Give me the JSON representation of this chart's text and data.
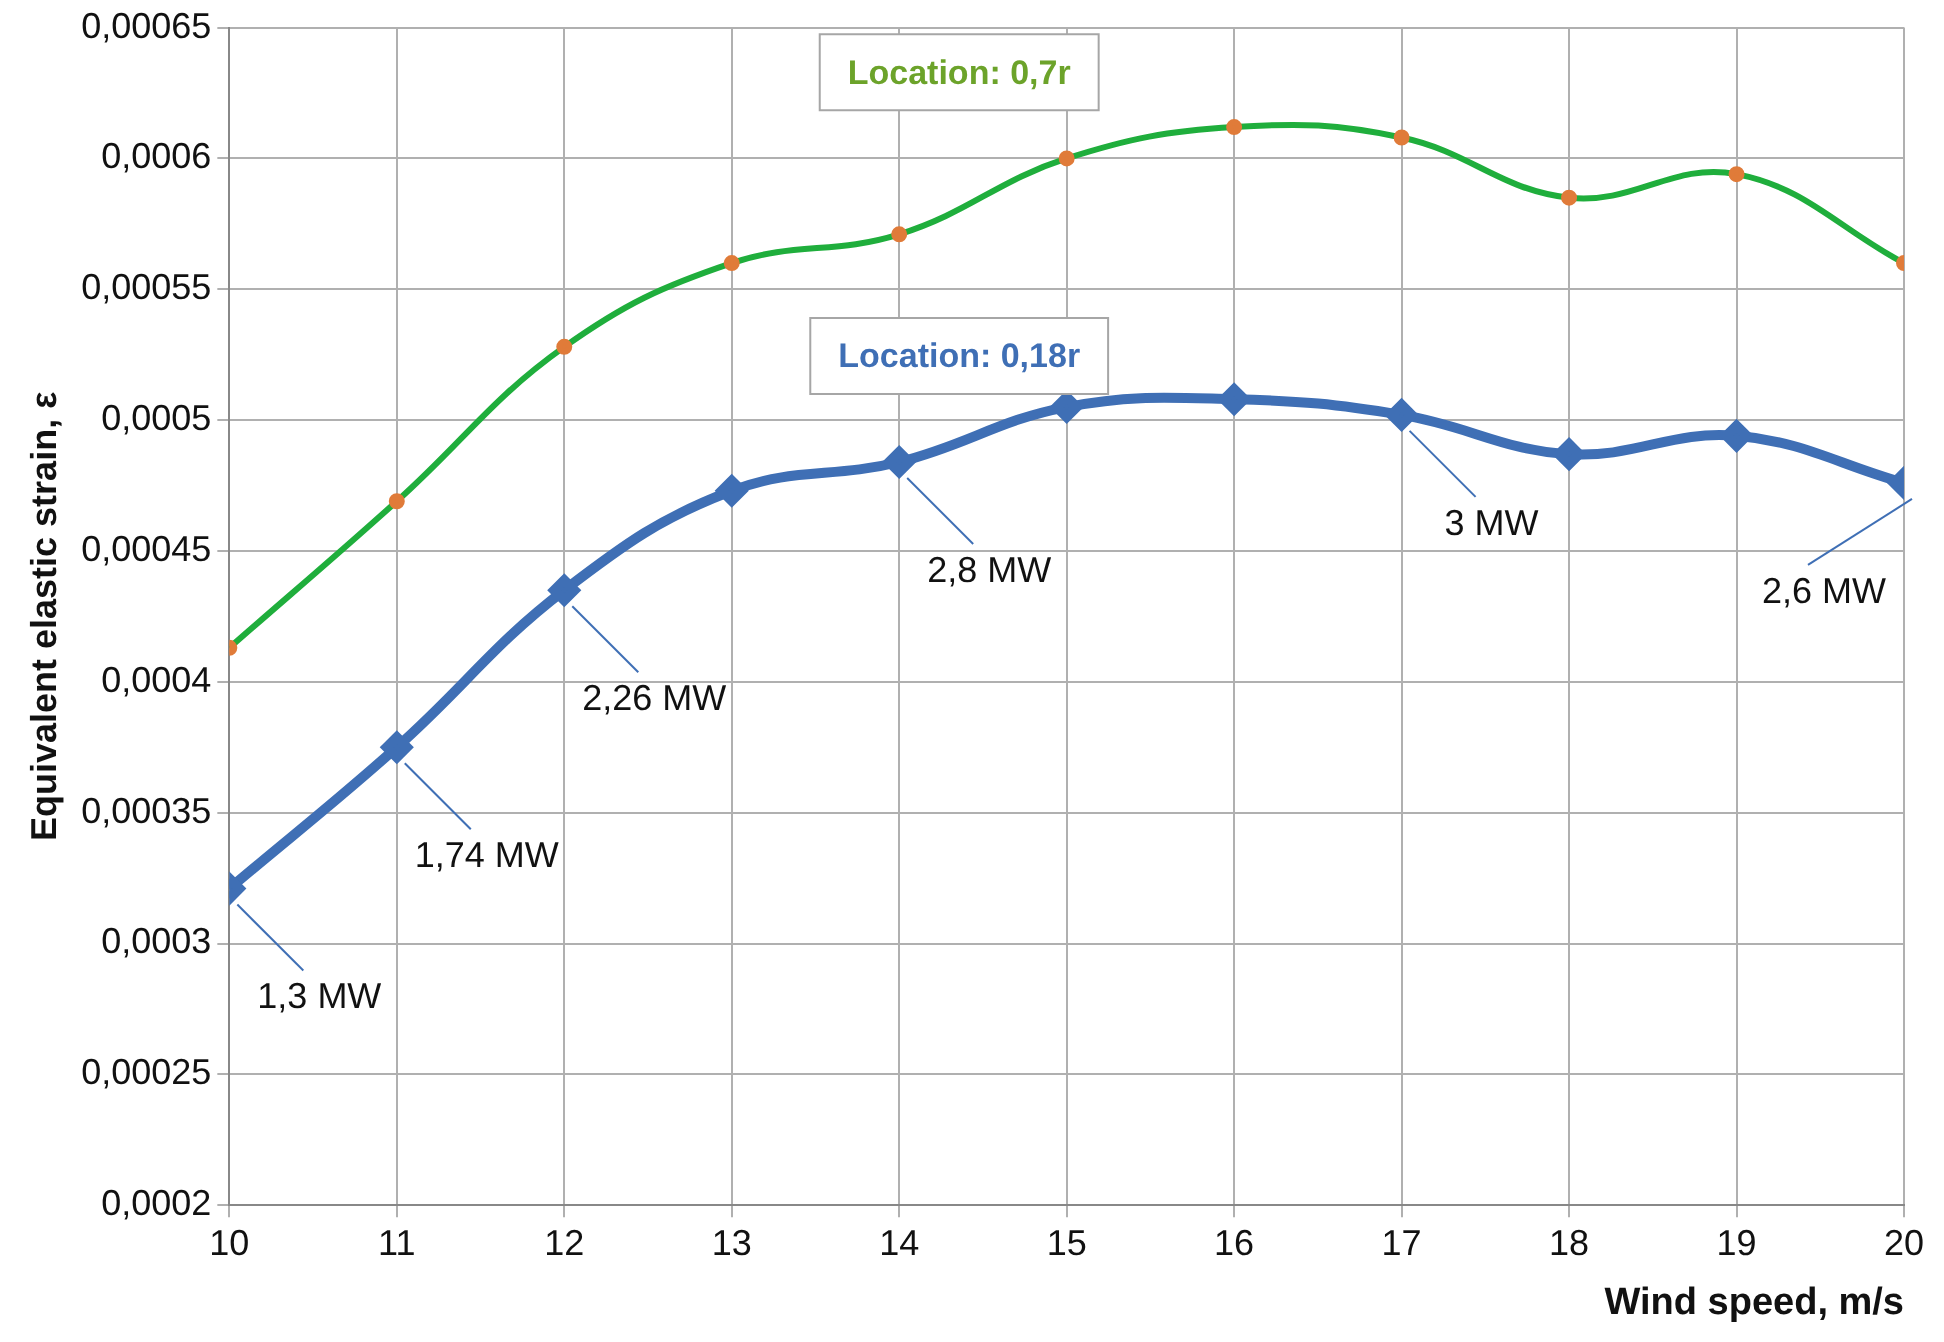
{
  "chart_data": {
    "type": "line",
    "xlabel": "Wind speed, m/s",
    "ylabel": "Equivalent elastic strain, ε",
    "x": [
      10,
      11,
      12,
      13,
      14,
      15,
      16,
      17,
      18,
      19,
      20
    ],
    "series": [
      {
        "name": "Location: 0,7r",
        "color": "#1fae3c",
        "marker": "circle",
        "values": [
          0.000413,
          0.000469,
          0.000528,
          0.00056,
          0.000571,
          0.0006,
          0.000612,
          0.000608,
          0.000585,
          0.000594,
          0.00056
        ]
      },
      {
        "name": "Location: 0,18r",
        "color": "#3f6fb5",
        "marker": "diamond",
        "values": [
          0.000321,
          0.000375,
          0.000435,
          0.000473,
          0.000484,
          0.000505,
          0.000508,
          0.000502,
          0.000487,
          0.000494,
          0.000476
        ]
      }
    ],
    "xlim": [
      10,
      20
    ],
    "xticks": [
      10,
      11,
      12,
      13,
      14,
      15,
      16,
      17,
      18,
      19,
      20
    ],
    "ylim": [
      0.0002,
      0.00065
    ],
    "yticks": [
      {
        "value": 0.0002,
        "label": "0,0002"
      },
      {
        "value": 0.00025,
        "label": "0,00025"
      },
      {
        "value": 0.0003,
        "label": "0,0003"
      },
      {
        "value": 0.00035,
        "label": "0,00035"
      },
      {
        "value": 0.0004,
        "label": "0,0004"
      },
      {
        "value": 0.00045,
        "label": "0,00045"
      },
      {
        "value": 0.0005,
        "label": "0,0005"
      },
      {
        "value": 0.00055,
        "label": "0,00055"
      },
      {
        "value": 0.0006,
        "label": "0,0006"
      },
      {
        "value": 0.00065,
        "label": "0,00065"
      }
    ],
    "grid": true,
    "legend": false,
    "annotations": [
      {
        "text": "1,3 MW",
        "x": 10,
        "y": 0.000321
      },
      {
        "text": "1,74 MW",
        "x": 11,
        "y": 0.000375
      },
      {
        "text": "2,26 MW",
        "x": 12,
        "y": 0.000435
      },
      {
        "text": "2,8 MW",
        "x": 14,
        "y": 0.000484
      },
      {
        "text": "3 MW",
        "x": 17,
        "y": 0.000502
      },
      {
        "text": "2,6 MW",
        "x": 20,
        "y": 0.000476
      }
    ]
  }
}
